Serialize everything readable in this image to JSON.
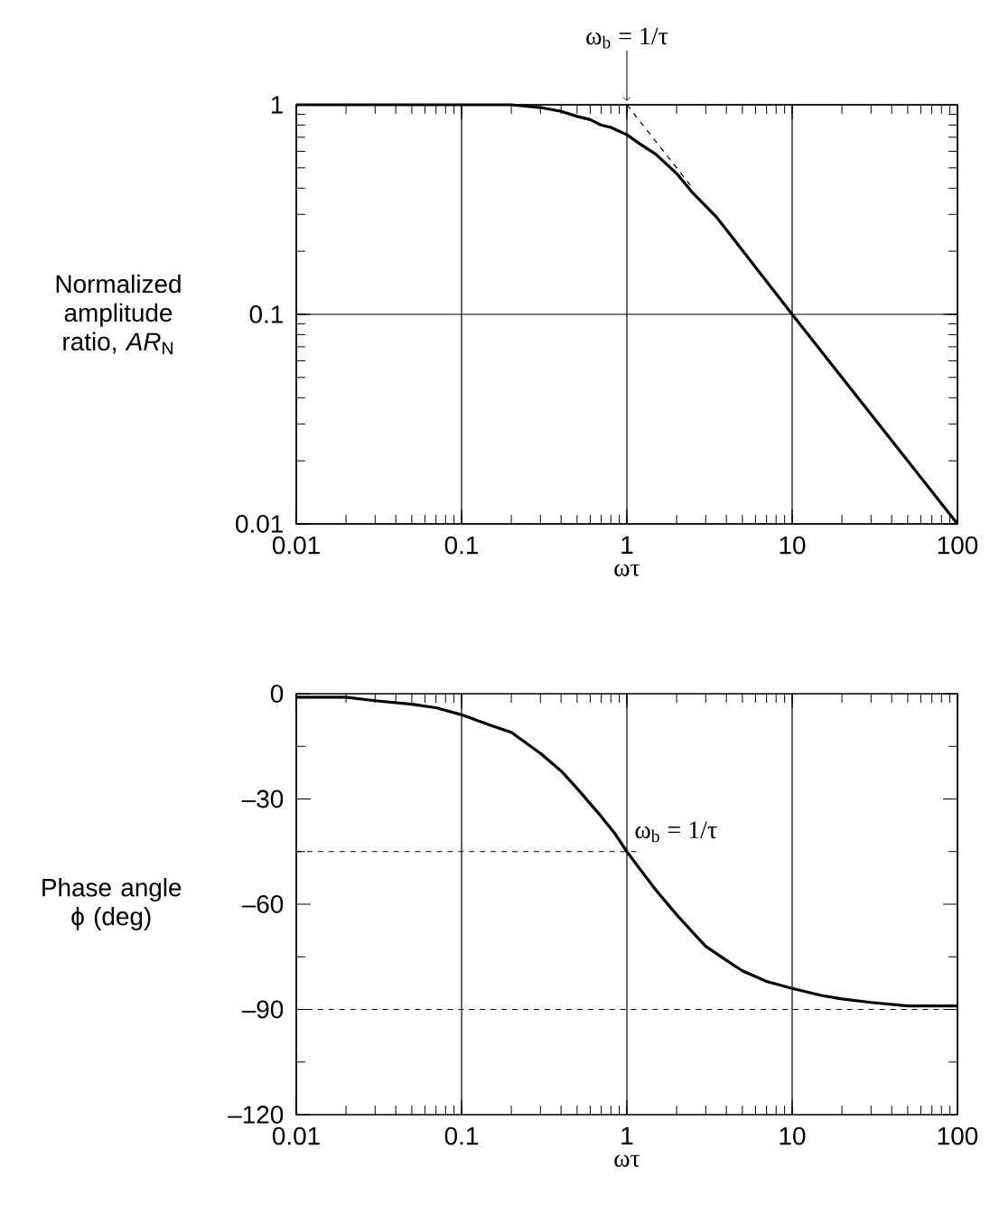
{
  "chart_data": [
    {
      "type": "line",
      "xlabel": "ωτ",
      "ylabel": "Normalized amplitude ratio, *AR*$_{N}$",
      "log": "xy",
      "xlim": [
        0.01,
        100
      ],
      "ylim": [
        0.01,
        1
      ],
      "xticks": [
        0.01,
        0.1,
        1,
        10,
        100
      ],
      "yticks": [
        0.01,
        0.1,
        1
      ],
      "grid": true,
      "marker": "none",
      "series": [
        {
          "color": "#000000",
          "line_style": "solid",
          "x": [
            0.01,
            0.1,
            0.2,
            0.3,
            0.4,
            0.5,
            0.6,
            0.7,
            0.8,
            1,
            1.2,
            1.5,
            2,
            2.5,
            3.5,
            10,
            100
          ],
          "values": [
            1,
            1,
            1,
            0.97,
            0.93,
            0.88,
            0.85,
            0.8,
            0.78,
            0.72,
            0.65,
            0.58,
            0.47,
            0.38,
            0.29,
            0.1,
            0.01
          ]
        },
        {
          "color": "#000000",
          "line_style": "dashed",
          "x": [
            1,
            2.5
          ],
          "values": [
            1,
            0.4
          ]
        }
      ],
      "annotations": [
        {
          "text": "ω$_{b}$ = 1/τ",
          "x": 1,
          "y": 1
        }
      ]
    },
    {
      "type": "line",
      "xlabel": "ωτ",
      "ylabel": "Phase angle ϕ (deg)",
      "log": "x",
      "xlim": [
        0.01,
        100
      ],
      "ylim": [
        -120,
        0
      ],
      "xticks": [
        0.01,
        0.1,
        1,
        10,
        100
      ],
      "yticks": [
        {
          "value": -120,
          "label": "–120"
        },
        {
          "value": -90,
          "label": "–90"
        },
        {
          "value": -60,
          "label": "–60"
        },
        {
          "value": -30,
          "label": "–30"
        },
        0
      ],
      "grid": "x",
      "marker": "none",
      "series": [
        {
          "color": "#000000",
          "line_style": "solid",
          "x": [
            0.01,
            0.02,
            0.03,
            0.05,
            0.07,
            0.1,
            0.15,
            0.2,
            0.3,
            0.4,
            0.5,
            0.7,
            0.85,
            1,
            1.2,
            1.5,
            2,
            2.5,
            3,
            4,
            5,
            7,
            10,
            15,
            20,
            30,
            50,
            100
          ],
          "values": [
            -1,
            -1,
            -2,
            -3,
            -4,
            -6,
            -9,
            -11,
            -17,
            -22,
            -27,
            -35,
            -40,
            -45,
            -50,
            -56,
            -63,
            -68,
            -72,
            -76,
            -79,
            -82,
            -84,
            -86,
            -87,
            -88,
            -89,
            -89
          ]
        },
        {
          "color": "#000000",
          "line_style": "dashed",
          "x": [
            0.01,
            1.2
          ],
          "values": [
            -45,
            -45
          ]
        }
      ],
      "ref_lines": [
        {
          "axis": "y",
          "value": -90,
          "color": "#000000",
          "line_style": "dashed"
        }
      ],
      "annotations": [
        {
          "text": "ω$_{b}$ = 1/τ",
          "x": 1,
          "y": -45
        }
      ]
    }
  ]
}
